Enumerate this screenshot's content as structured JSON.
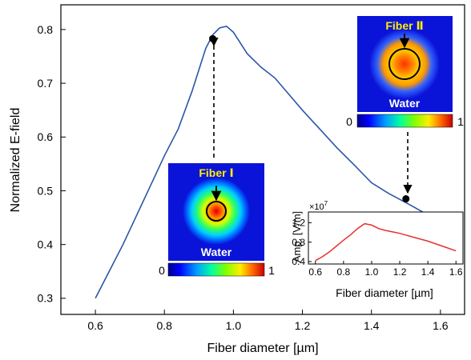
{
  "chart_data": [
    {
      "type": "line",
      "xlabel": "Fiber diameter [µm]",
      "ylabel": "Normalized E-field",
      "xlim": [
        0.5,
        1.67
      ],
      "ylim": [
        0.27,
        0.846
      ],
      "xticks": [
        0.6,
        0.8,
        1.0,
        1.2,
        1.4,
        1.6
      ],
      "xtick_labels": [
        "0.6",
        "0.8",
        "1.0",
        "1.2",
        "1.4",
        "1.6"
      ],
      "yticks": [
        0.3,
        0.4,
        0.5,
        0.6,
        0.7,
        0.8
      ],
      "ytick_labels": [
        "0.3",
        "0.4",
        "0.5",
        "0.6",
        "0.7",
        "0.8"
      ],
      "grid": false,
      "series": [
        {
          "color": "#2a55a8",
          "x": [
            0.6,
            0.64,
            0.68,
            0.72,
            0.76,
            0.8,
            0.84,
            0.88,
            0.9,
            0.92,
            0.94,
            0.96,
            0.98,
            1.0,
            1.02,
            1.04,
            1.08,
            1.12,
            1.16,
            1.2,
            1.25,
            1.3,
            1.35,
            1.4,
            1.45,
            1.5,
            1.55,
            1.6
          ],
          "y": [
            0.3,
            0.35,
            0.4,
            0.455,
            0.51,
            0.565,
            0.615,
            0.685,
            0.725,
            0.765,
            0.79,
            0.803,
            0.806,
            0.795,
            0.775,
            0.755,
            0.73,
            0.71,
            0.68,
            0.65,
            0.615,
            0.58,
            0.548,
            0.515,
            0.495,
            0.478,
            0.46,
            0.448
          ]
        }
      ],
      "markers": [
        {
          "x": 0.94,
          "y": 0.783
        },
        {
          "x": 1.5,
          "y": 0.485
        }
      ]
    },
    {
      "type": "line",
      "xlabel": "Fiber diameter [µm]",
      "ylabel": "Amp. [V/m]",
      "exponent_label": "×10",
      "exponent_power": "7",
      "xlim": [
        0.55,
        1.65
      ],
      "ylim": [
        0.35,
        1.42
      ],
      "xticks": [
        0.6,
        0.8,
        1.0,
        1.2,
        1.4,
        1.6
      ],
      "xtick_labels": [
        "0.6",
        "0.8",
        "1.0",
        "1.2",
        "1.4",
        "1.6"
      ],
      "yticks": [
        0.4,
        0.8,
        1.2
      ],
      "ytick_labels": [
        "0.4",
        "0.8",
        "1.2"
      ],
      "series": [
        {
          "color": "#e83030",
          "x": [
            0.6,
            0.65,
            0.7,
            0.75,
            0.8,
            0.85,
            0.9,
            0.95,
            1.0,
            1.05,
            1.1,
            1.15,
            1.2,
            1.3,
            1.4,
            1.5,
            1.6
          ],
          "y": [
            0.42,
            0.5,
            0.6,
            0.72,
            0.84,
            0.95,
            1.08,
            1.18,
            1.15,
            1.08,
            1.04,
            1.01,
            0.98,
            0.9,
            0.82,
            0.72,
            0.62
          ]
        }
      ]
    }
  ],
  "panels": {
    "fiber1": {
      "label": "Fiber Ⅰ",
      "medium": "Water"
    },
    "fiber2": {
      "label": "Fiber Ⅱ",
      "medium": "Water"
    }
  },
  "colorbar": {
    "min_label": "0",
    "max_label": "1"
  },
  "colors": {
    "field_bg": "#0a14d8",
    "fiber_title": "#ffee00",
    "main_line": "#2a55a8",
    "inset_line": "#e83030"
  }
}
